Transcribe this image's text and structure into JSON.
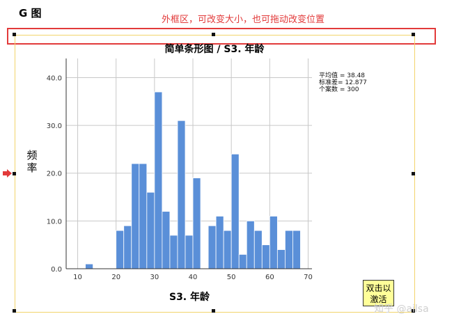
{
  "page": {
    "title": "G 图",
    "annotation": "外框区，可改变大小，也可拖动改变位置",
    "activate_button": [
      "双击以",
      "激活"
    ],
    "watermark": "知乎 @ailsa"
  },
  "colors": {
    "bar": "#5a8fd8",
    "bar_edge": "#ffffff",
    "annotation": "#e23a3a",
    "frame": "#f2d46a",
    "grid": "#c8c8c8",
    "button_bg": "#ffff99"
  },
  "stats": [
    "平均值 = 38.48",
    "标准差= 12.877",
    "个案数 = 300"
  ],
  "chart_data": {
    "type": "bar",
    "title": "简单条形图 / S3. 年龄",
    "xlabel": "S3. 年龄",
    "ylabel": "频率",
    "xlim": [
      7,
      71
    ],
    "ylim": [
      0,
      44
    ],
    "xticks": [
      10,
      20,
      30,
      40,
      50,
      60,
      70
    ],
    "yticks": [
      0,
      10,
      20,
      30,
      40
    ],
    "ytick_labels": [
      "0.0",
      "10.0",
      "20.0",
      "30.0",
      "40.0"
    ],
    "grid": true,
    "bin_width": 2,
    "bins_start": [
      12,
      20,
      22,
      24,
      26,
      28,
      30,
      32,
      34,
      36,
      38,
      40,
      44,
      46,
      48,
      50,
      52,
      54,
      56,
      58,
      60,
      62,
      64,
      66
    ],
    "values": [
      1,
      8,
      9,
      22,
      22,
      16,
      37,
      12,
      7,
      31,
      7,
      19,
      9,
      11,
      8,
      24,
      3,
      10,
      8,
      5,
      11,
      4,
      8,
      8
    ]
  }
}
